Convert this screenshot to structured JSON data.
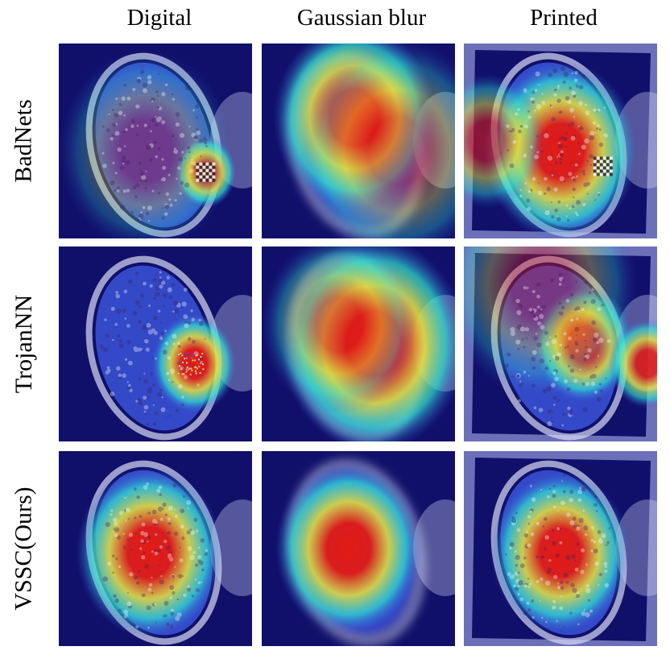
{
  "columns": [
    "Digital",
    "Gaussian blur",
    "Printed"
  ],
  "rows": [
    "BadNets",
    "TrojanNN",
    "VSSC(Ours)"
  ],
  "heatmap_colors": {
    "background": "#10106a",
    "low": "#3a54d8",
    "mid": "#2ee6d4",
    "warm": "#e8e23a",
    "hot": "#e11b16",
    "plate": "#d8dbf5"
  }
}
